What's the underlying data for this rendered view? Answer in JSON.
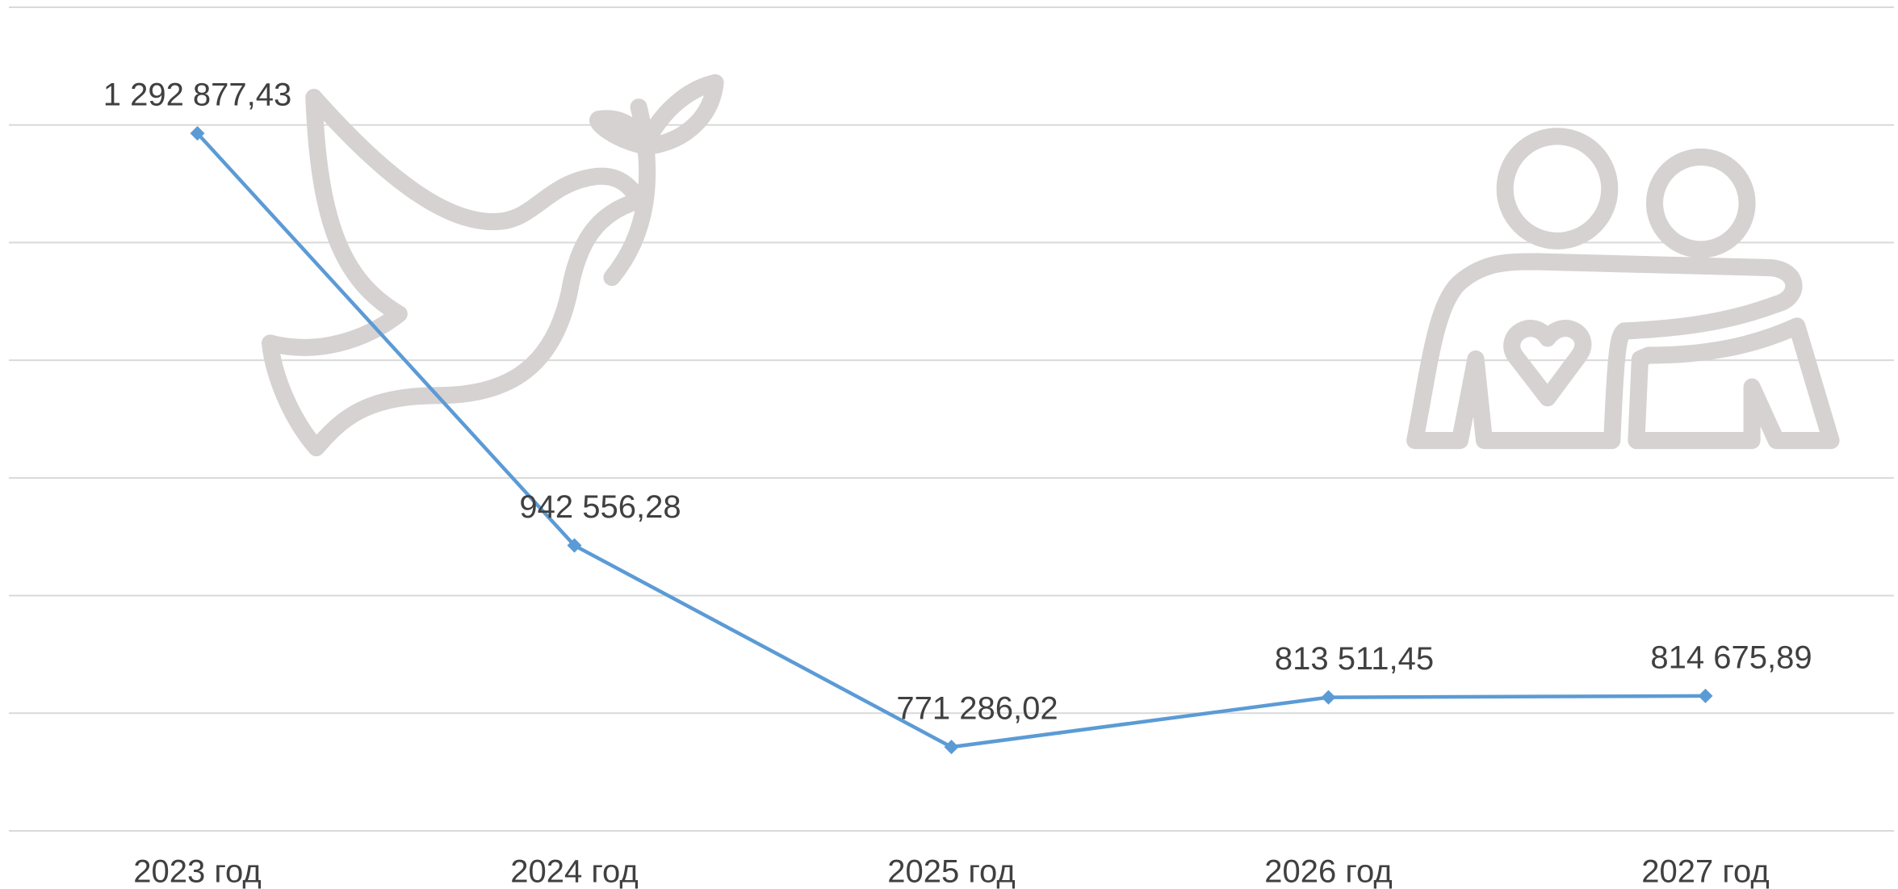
{
  "chart_data": {
    "type": "line",
    "categories": [
      "2023 год",
      "2024 год",
      "2025 год",
      "2026 год",
      "2027 год"
    ],
    "series": [
      {
        "color": "#5b9bd5",
        "values": [
          1292877.43,
          942556.28,
          771286.02,
          813511.45,
          814675.89
        ],
        "value_labels": [
          "1 292 877,43",
          "942 556,28",
          "771 286,02",
          "813 511,45",
          "814 675,89"
        ]
      }
    ],
    "ylim": [
      700000,
      1400000
    ],
    "yticks": [
      700000,
      800000,
      900000,
      1000000,
      1100000,
      1200000,
      1300000,
      1400000
    ],
    "grid": true
  }
}
